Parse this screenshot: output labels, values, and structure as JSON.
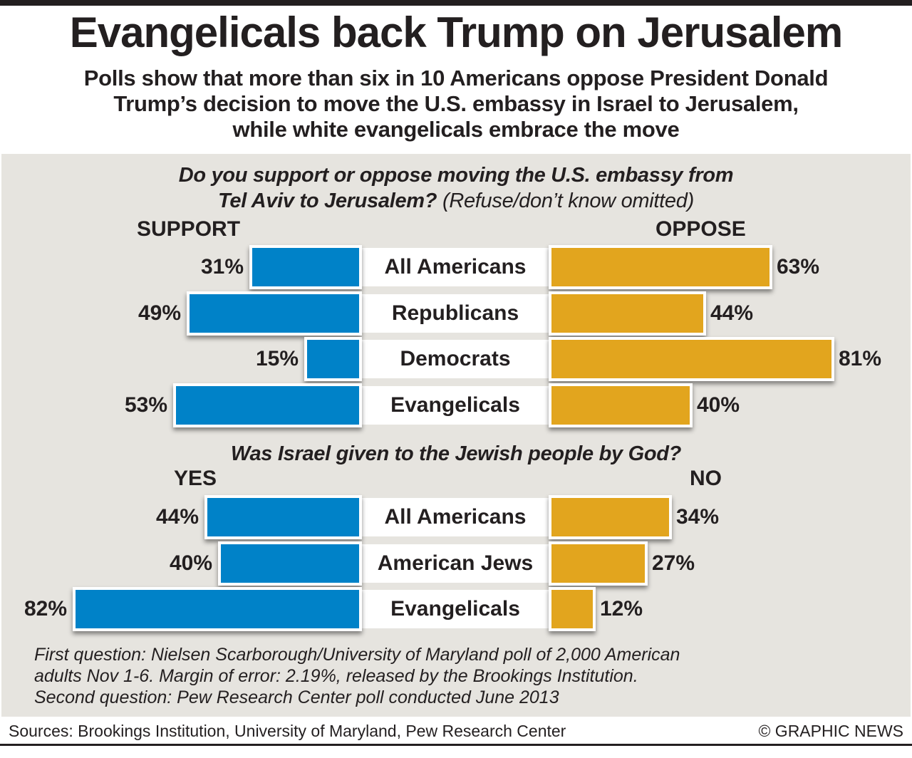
{
  "header": {
    "title": "Evangelicals back Trump on Jerusalem",
    "subtitle_lines": [
      "Polls show that more than six in 10 Americans oppose President Donald",
      "Trump’s decision to move the U.S. embassy in Israel to Jerusalem,",
      "while white evangelicals embrace the move"
    ]
  },
  "colors": {
    "left_bar": "#0082c8",
    "right_bar": "#e2a51e",
    "panel_bg": "#e6e4df",
    "text": "#231f20"
  },
  "chart_data": [
    {
      "type": "bar",
      "orientation": "diverging-horizontal",
      "title": "Do you support or oppose moving the U.S. embassy from Tel Aviv to Jerusalem?",
      "title_note": "(Refuse/don’t know omitted)",
      "left_label": "SUPPORT",
      "right_label": "OPPOSE",
      "categories": [
        "All Americans",
        "Republicans",
        "Democrats",
        "Evangelicals"
      ],
      "series": [
        {
          "name": "Support",
          "side": "left",
          "values": [
            31,
            49,
            15,
            53
          ]
        },
        {
          "name": "Oppose",
          "side": "right",
          "values": [
            63,
            44,
            81,
            40
          ]
        }
      ],
      "unit": "%",
      "xlim": [
        0,
        100
      ]
    },
    {
      "type": "bar",
      "orientation": "diverging-horizontal",
      "title": "Was Israel given to the Jewish people by God?",
      "title_note": "",
      "left_label": "YES",
      "right_label": "NO",
      "categories": [
        "All Americans",
        "American Jews",
        "Evangelicals"
      ],
      "series": [
        {
          "name": "Yes",
          "side": "left",
          "values": [
            44,
            40,
            82
          ]
        },
        {
          "name": "No",
          "side": "right",
          "values": [
            34,
            27,
            12
          ]
        }
      ],
      "unit": "%",
      "xlim": [
        0,
        100
      ]
    }
  ],
  "footnote_lines": [
    "First question: Nielsen Scarborough/University of Maryland poll of 2,000 American",
    "adults Nov 1-6. Margin of error: 2.19%, released by the Brookings Institution.",
    "Second question: Pew Research Center poll conducted June 2013"
  ],
  "footer": {
    "sources": "Sources: Brookings Institution, University of Maryland, Pew Research Center",
    "credit": "© GRAPHIC NEWS"
  }
}
